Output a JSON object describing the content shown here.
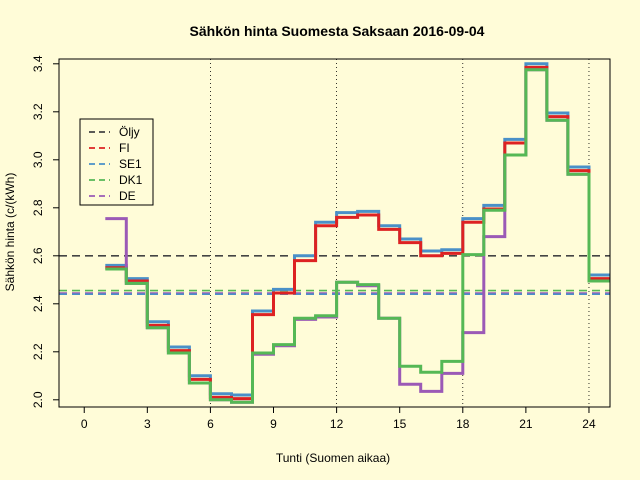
{
  "chart_data": {
    "type": "line",
    "title": "Sähkön hinta Suomesta Saksaan 2016-09-04",
    "xlabel": "Tunti (Suomen aikaa)",
    "ylabel": "Sähkön hinta (c/(kWh)",
    "xlim": [
      -1.2,
      25.0
    ],
    "ylim": [
      1.97,
      3.42
    ],
    "x_ticks": [
      0,
      3,
      6,
      9,
      12,
      15,
      18,
      21,
      24
    ],
    "y_ticks": [
      2.0,
      2.2,
      2.4,
      2.6,
      2.8,
      3.0,
      3.2,
      3.4
    ],
    "y_tick_labels": [
      "2.0",
      "2.2",
      "2.4",
      "2.6",
      "2.8",
      "3.0",
      "3.2",
      "3.4"
    ],
    "vlines": [
      6,
      12,
      18,
      24
    ],
    "hour_start": 1,
    "hour_end": 25,
    "legend_position": "top-left",
    "reference_lines": [
      {
        "name": "Öljy",
        "value": 2.6,
        "color": "#444444"
      },
      {
        "name": "DK1",
        "value": 2.455,
        "color": "#55b855"
      },
      {
        "name": "DE",
        "value": 2.445,
        "color": "#9b59b6"
      },
      {
        "name": "SE1",
        "value": 2.44,
        "color": "#4a90c8"
      }
    ],
    "series": [
      {
        "name": "SE1",
        "color": "#4a90c8",
        "width": 3,
        "values": [
          2.56,
          2.505,
          2.325,
          2.22,
          2.1,
          2.025,
          2.02,
          2.37,
          2.46,
          2.6,
          2.74,
          2.78,
          2.785,
          2.725,
          2.67,
          2.62,
          2.625,
          2.755,
          2.81,
          3.085,
          3.4,
          3.195,
          2.97,
          2.52
        ]
      },
      {
        "name": "FI",
        "color": "#dd2222",
        "width": 3,
        "values": [
          2.55,
          2.495,
          2.31,
          2.205,
          2.085,
          2.01,
          2.005,
          2.355,
          2.445,
          2.58,
          2.725,
          2.76,
          2.77,
          2.71,
          2.655,
          2.6,
          2.61,
          2.74,
          2.795,
          3.07,
          3.385,
          3.18,
          2.955,
          2.505
        ]
      },
      {
        "name": "DE",
        "color": "#9b59b6",
        "width": 3,
        "values": [
          2.755,
          2.485,
          2.3,
          2.195,
          2.07,
          2.0,
          1.99,
          2.19,
          2.225,
          2.335,
          2.345,
          2.49,
          2.475,
          2.34,
          2.065,
          2.035,
          2.11,
          2.28,
          2.68,
          3.02,
          3.375,
          3.165,
          2.94,
          2.495
        ]
      },
      {
        "name": "DK1",
        "color": "#55b855",
        "width": 3,
        "values": [
          2.545,
          2.485,
          2.3,
          2.195,
          2.07,
          2.0,
          1.99,
          2.195,
          2.23,
          2.34,
          2.35,
          2.49,
          2.48,
          2.34,
          2.14,
          2.115,
          2.16,
          2.605,
          2.79,
          3.02,
          3.375,
          3.165,
          2.94,
          2.495
        ]
      }
    ],
    "legend": [
      {
        "name": "Öljy",
        "color": "#444444"
      },
      {
        "name": "FI",
        "color": "#dd2222"
      },
      {
        "name": "SE1",
        "color": "#4a90c8"
      },
      {
        "name": "DK1",
        "color": "#55b855"
      },
      {
        "name": "DE",
        "color": "#9b59b6"
      }
    ]
  }
}
